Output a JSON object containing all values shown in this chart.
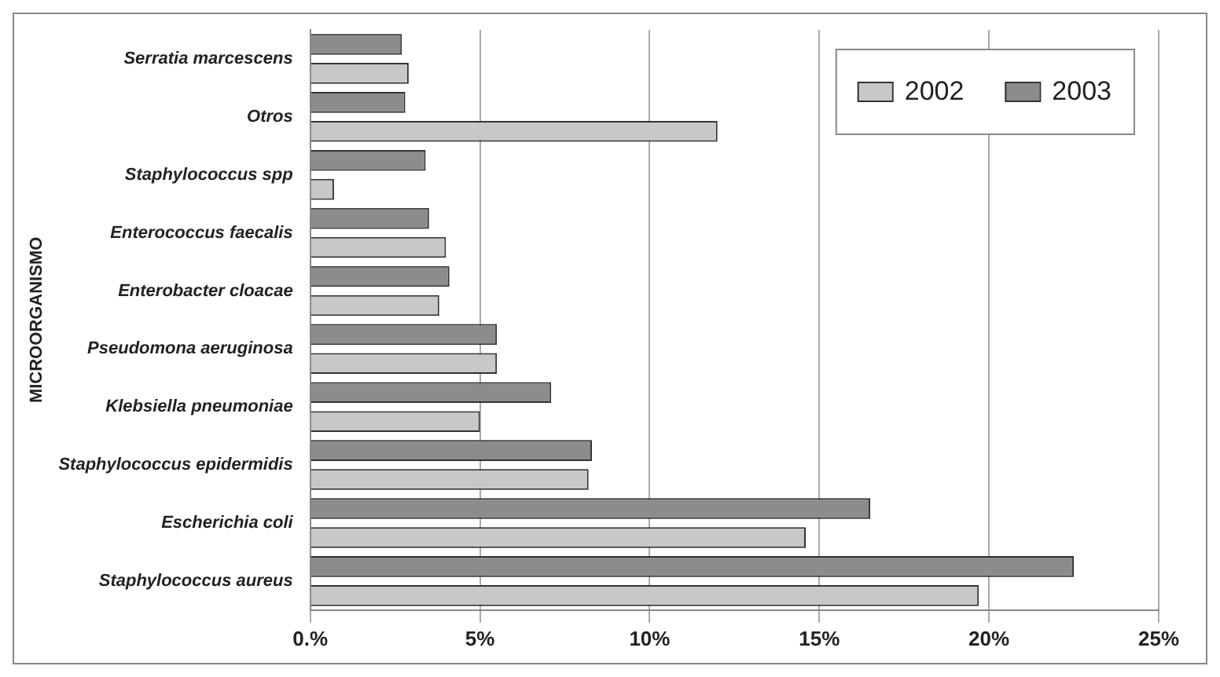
{
  "chart_data": {
    "type": "bar",
    "orientation": "horizontal",
    "ylabel": "MICROORGANISMO",
    "categories": [
      "Serratia marcescens",
      "Otros",
      "Staphylococcus spp",
      "Enterococcus faecalis",
      "Enterobacter cloacae",
      "Pseudomona aeruginosa",
      "Klebsiella pneumoniae",
      "Staphylococcus epidermidis",
      "Escherichia coli",
      "Staphylococcus aureus"
    ],
    "series": [
      {
        "name": "2002",
        "color": "#c8c8c8",
        "values": [
          2.9,
          12.0,
          0.7,
          4.0,
          3.8,
          5.5,
          5.0,
          8.2,
          14.6,
          19.7
        ]
      },
      {
        "name": "2003",
        "color": "#8c8c8c",
        "values": [
          2.7,
          2.8,
          3.4,
          3.5,
          4.1,
          5.5,
          7.1,
          8.3,
          16.5,
          22.5
        ]
      }
    ],
    "xlim": [
      0,
      25
    ],
    "xticks": [
      {
        "value": 0,
        "label": "0.%"
      },
      {
        "value": 5,
        "label": "5%"
      },
      {
        "value": 10,
        "label": "10%"
      },
      {
        "value": 15,
        "label": "15%"
      },
      {
        "value": 20,
        "label": "20%"
      },
      {
        "value": 25,
        "label": "25%"
      }
    ],
    "grid": "x",
    "legend": "top right"
  }
}
